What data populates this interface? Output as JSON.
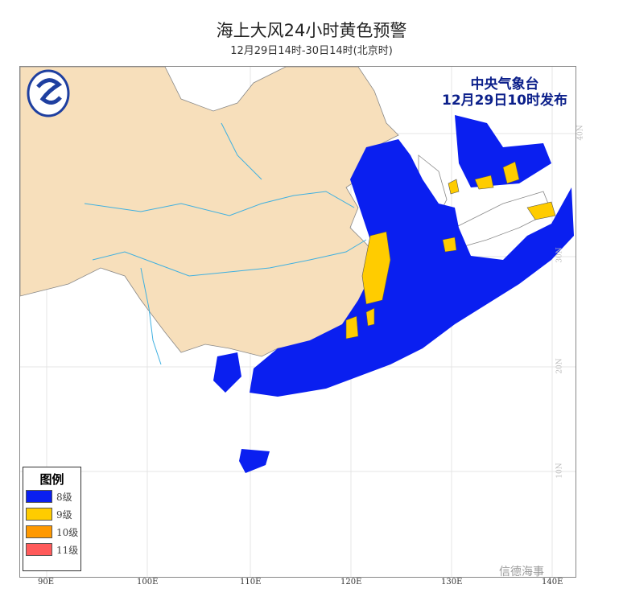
{
  "title": "海上大风24小时黄色预警",
  "subtitle": "12月29日14时-30日14时(北京时)",
  "issuer": {
    "name": "中央气象台",
    "time": "12月29日10时发布"
  },
  "legend": {
    "title": "图例",
    "items": [
      {
        "label": "8级",
        "color": "#0a1ff0"
      },
      {
        "label": "9级",
        "color": "#ffcc00"
      },
      {
        "label": "10级",
        "color": "#ff9900"
      },
      {
        "label": "11级",
        "color": "#ff5a5a"
      }
    ]
  },
  "axes": {
    "lon": [
      "90E",
      "100E",
      "110E",
      "120E",
      "130E",
      "140E"
    ],
    "lat": [
      "40N",
      "30N",
      "20N",
      "10N"
    ]
  },
  "colors": {
    "land_china": "#f7dfbb",
    "river": "#3fb0e0",
    "border": "#888888"
  },
  "watermark": "信德海事"
}
